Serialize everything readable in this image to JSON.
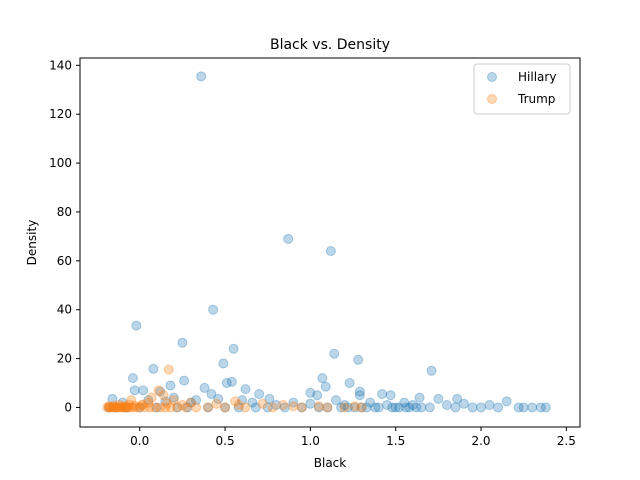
{
  "chart_data": {
    "type": "scatter",
    "title": "Black vs. Density",
    "xlabel": "Black",
    "ylabel": "Density",
    "xlim": [
      -0.35,
      2.58
    ],
    "ylim": [
      -8,
      143
    ],
    "xticks": [
      0.0,
      0.5,
      1.0,
      1.5,
      2.0,
      2.5
    ],
    "xtick_labels": [
      "0.0",
      "0.5",
      "1.0",
      "1.5",
      "2.0",
      "2.5"
    ],
    "yticks": [
      0,
      20,
      40,
      60,
      80,
      100,
      120,
      140
    ],
    "ytick_labels": [
      "0",
      "20",
      "40",
      "60",
      "80",
      "100",
      "120",
      "140"
    ],
    "grid": false,
    "legend_position": "top-right",
    "series": [
      {
        "name": "Hillary",
        "color": "#1f77b4",
        "alpha": 0.3,
        "points": [
          [
            0.36,
            135.5
          ],
          [
            0.87,
            69
          ],
          [
            1.12,
            64
          ],
          [
            0.43,
            40
          ],
          [
            -0.02,
            33.5
          ],
          [
            0.25,
            26.5
          ],
          [
            0.55,
            24
          ],
          [
            1.14,
            22
          ],
          [
            1.28,
            19.5
          ],
          [
            0.49,
            18
          ],
          [
            0.08,
            15.8
          ],
          [
            1.71,
            15
          ],
          [
            -0.04,
            12
          ],
          [
            1.07,
            12
          ],
          [
            0.26,
            11
          ],
          [
            0.54,
            10.5
          ],
          [
            0.51,
            10
          ],
          [
            1.23,
            10
          ],
          [
            0.18,
            9
          ],
          [
            0.38,
            8
          ],
          [
            1.09,
            8.5
          ],
          [
            0.62,
            7.5
          ],
          [
            -0.03,
            7
          ],
          [
            0.02,
            7
          ],
          [
            0.12,
            6.5
          ],
          [
            1.0,
            6
          ],
          [
            1.29,
            6.5
          ],
          [
            0.42,
            5.5
          ],
          [
            0.7,
            5.5
          ],
          [
            1.04,
            5
          ],
          [
            1.29,
            5
          ],
          [
            1.42,
            5.5
          ],
          [
            1.47,
            5
          ],
          [
            1.64,
            4
          ],
          [
            1.86,
            3.5
          ],
          [
            2.15,
            2.5
          ],
          [
            0.2,
            4
          ],
          [
            0.05,
            3
          ],
          [
            -0.16,
            3.5
          ],
          [
            0.33,
            3
          ],
          [
            0.46,
            3.5
          ],
          [
            0.6,
            3
          ],
          [
            0.76,
            3.5
          ],
          [
            1.15,
            3
          ],
          [
            1.75,
            3.5
          ],
          [
            0.3,
            2
          ],
          [
            0.66,
            2
          ],
          [
            0.9,
            2
          ],
          [
            1.35,
            2
          ],
          [
            1.55,
            2
          ],
          [
            1.9,
            1.5
          ],
          [
            2.05,
            1
          ],
          [
            -0.1,
            2
          ],
          [
            0.15,
            2.5
          ],
          [
            0.8,
            1
          ],
          [
            1.0,
            1.5
          ],
          [
            1.2,
            1
          ],
          [
            1.45,
            1
          ],
          [
            1.6,
            1
          ],
          [
            1.8,
            1
          ],
          [
            2.22,
            0
          ],
          [
            2.25,
            0
          ],
          [
            2.3,
            0
          ],
          [
            2.35,
            0
          ],
          [
            2.38,
            0
          ],
          [
            2.0,
            0
          ],
          [
            2.1,
            0
          ],
          [
            1.95,
            0
          ],
          [
            1.85,
            0
          ],
          [
            1.7,
            0
          ],
          [
            1.65,
            0
          ],
          [
            1.58,
            0
          ],
          [
            1.52,
            0
          ],
          [
            1.48,
            0
          ],
          [
            1.4,
            0
          ],
          [
            1.33,
            0
          ],
          [
            1.26,
            0
          ],
          [
            1.18,
            0
          ],
          [
            1.1,
            0
          ],
          [
            1.05,
            0
          ],
          [
            0.95,
            0
          ],
          [
            0.85,
            0
          ],
          [
            0.75,
            0
          ],
          [
            0.68,
            0
          ],
          [
            0.58,
            0
          ],
          [
            0.5,
            0
          ],
          [
            0.4,
            0
          ],
          [
            0.28,
            0
          ],
          [
            0.22,
            0
          ],
          [
            0.1,
            0
          ],
          [
            0.0,
            0
          ],
          [
            -0.08,
            0
          ],
          [
            -0.14,
            0
          ],
          [
            -0.18,
            0
          ],
          [
            1.62,
            0
          ],
          [
            1.56,
            0
          ],
          [
            1.5,
            0
          ],
          [
            1.38,
            0
          ],
          [
            1.3,
            0
          ],
          [
            1.22,
            0
          ]
        ]
      },
      {
        "name": "Trump",
        "color": "#ff7f0e",
        "alpha": 0.3,
        "points": [
          [
            0.17,
            15.5
          ],
          [
            0.11,
            7
          ],
          [
            0.14,
            5
          ],
          [
            0.07,
            4
          ],
          [
            -0.05,
            3
          ],
          [
            0.2,
            3
          ],
          [
            0.56,
            2.5
          ],
          [
            0.05,
            2
          ],
          [
            0.3,
            2
          ],
          [
            0.16,
            1.5
          ],
          [
            0.45,
            1.5
          ],
          [
            0.72,
            1.5
          ],
          [
            0.02,
            1.2
          ],
          [
            0.25,
            1
          ],
          [
            0.58,
            1
          ],
          [
            0.84,
            1
          ],
          [
            1.26,
            0.5
          ],
          [
            0.9,
            0.5
          ],
          [
            1.05,
            0.5
          ],
          [
            1.1,
            0
          ],
          [
            -0.19,
            0
          ],
          [
            -0.18,
            0
          ],
          [
            -0.17,
            0
          ],
          [
            -0.16,
            0
          ],
          [
            -0.15,
            0
          ],
          [
            -0.14,
            0
          ],
          [
            -0.13,
            0
          ],
          [
            -0.12,
            0
          ],
          [
            -0.11,
            0
          ],
          [
            -0.1,
            0
          ],
          [
            -0.09,
            0
          ],
          [
            -0.08,
            0
          ],
          [
            -0.07,
            0
          ],
          [
            -0.06,
            0
          ],
          [
            -0.04,
            0
          ],
          [
            -0.02,
            0
          ],
          [
            0.0,
            0
          ],
          [
            0.03,
            0
          ],
          [
            0.06,
            0
          ],
          [
            0.09,
            0
          ],
          [
            0.12,
            0
          ],
          [
            0.15,
            0
          ],
          [
            0.18,
            0
          ],
          [
            0.22,
            0
          ],
          [
            0.27,
            0
          ],
          [
            0.33,
            0
          ],
          [
            0.4,
            0
          ],
          [
            0.5,
            0
          ],
          [
            0.62,
            0
          ],
          [
            0.78,
            0
          ],
          [
            0.95,
            0
          ],
          [
            1.2,
            0
          ],
          [
            1.3,
            0
          ],
          [
            -0.18,
            0.5
          ],
          [
            -0.15,
            0.8
          ],
          [
            -0.12,
            1
          ],
          [
            -0.09,
            0.6
          ],
          [
            -0.06,
            1.2
          ],
          [
            -0.03,
            0.7
          ],
          [
            0.01,
            0.9
          ]
        ]
      }
    ]
  }
}
